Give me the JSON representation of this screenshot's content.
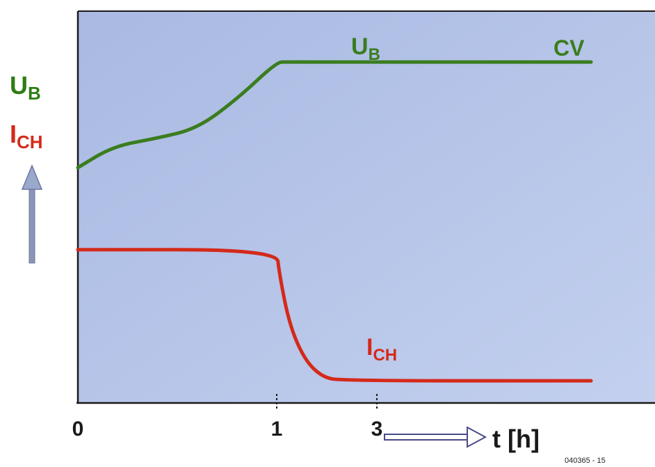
{
  "chart_data": {
    "type": "line",
    "x_ticks": [
      {
        "value": 0,
        "label": "0"
      },
      {
        "value": 1,
        "label": "1"
      },
      {
        "value": 3,
        "label": "3"
      }
    ],
    "xlabel": "t [h]",
    "ylabel_lines": [
      {
        "main": "U",
        "sub": "B",
        "color": "#2e7d14"
      },
      {
        "main": "I",
        "sub": "CH",
        "color": "#d42a1a"
      }
    ],
    "series": [
      {
        "name_main": "U",
        "name_sub": "B",
        "color": "#3a7d1f",
        "annotation": "CV",
        "points": [
          [
            0,
            0.6
          ],
          [
            0.18,
            0.655
          ],
          [
            0.4,
            0.675
          ],
          [
            0.6,
            0.7
          ],
          [
            0.8,
            0.775
          ],
          [
            1.0,
            0.87
          ],
          [
            1.2,
            0.87
          ],
          [
            3.6,
            0.87
          ]
        ]
      },
      {
        "name_main": "I",
        "name_sub": "CH",
        "color": "#d42a1a",
        "points": [
          [
            0,
            0.39
          ],
          [
            1.0,
            0.39
          ],
          [
            1.05,
            0.33
          ],
          [
            1.25,
            0.2
          ],
          [
            1.55,
            0.11
          ],
          [
            1.9,
            0.065
          ],
          [
            2.3,
            0.055
          ],
          [
            3.6,
            0.055
          ]
        ]
      }
    ],
    "figure_id": "040365 - 15",
    "background": "#b7c6e8"
  }
}
